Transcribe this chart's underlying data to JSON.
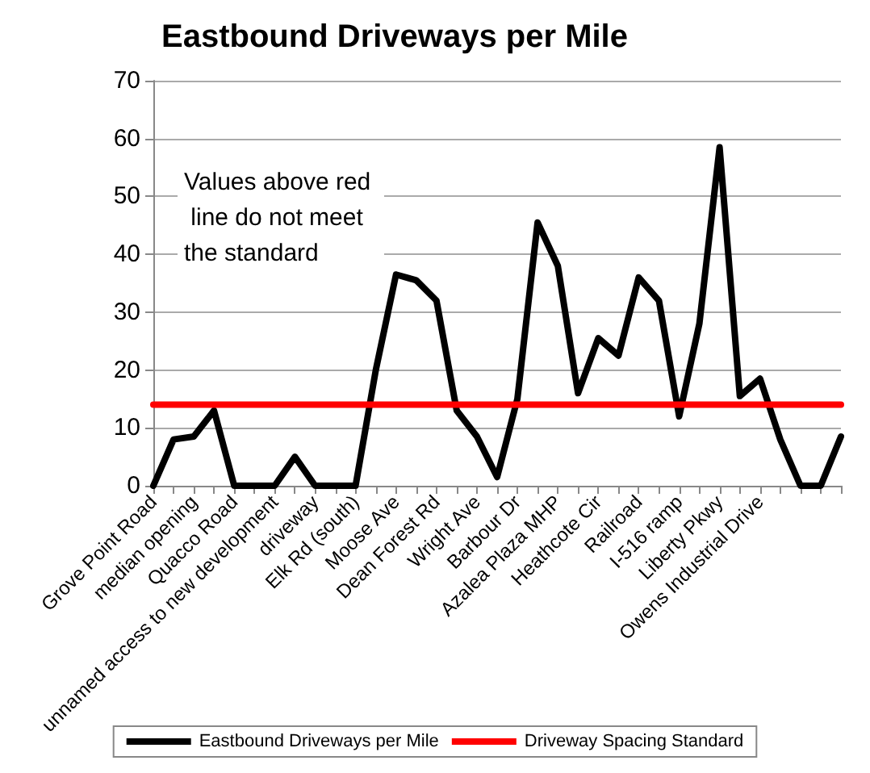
{
  "chart_data": {
    "type": "line",
    "title": "Eastbound Driveways per Mile",
    "categories": [
      "Grove Point Road",
      null,
      "median opening",
      null,
      "Quacco Road",
      null,
      "unnamed access to new development",
      null,
      "driveway",
      null,
      "Elk Rd (south)",
      null,
      "Moose Ave",
      null,
      "Dean Forest Rd",
      null,
      "Wright Ave",
      null,
      "Barbour Dr",
      null,
      "Azalea Plaza MHP",
      null,
      "Heathcote Cir",
      null,
      "Railroad",
      null,
      "I-516 ramp",
      null,
      "Liberty Pkwy",
      null,
      "Owens Industrial Drive",
      null,
      null,
      null,
      null
    ],
    "series": [
      {
        "name": "Eastbound Driveways per Mile",
        "color": "#000000",
        "values": [
          0,
          8,
          8.5,
          13,
          0,
          0,
          0,
          5,
          0,
          0,
          0,
          20,
          36.5,
          35.5,
          32,
          13,
          8.5,
          1.5,
          15,
          45.5,
          38,
          16,
          25.5,
          22.5,
          36,
          32,
          12,
          28,
          58.5,
          15.5,
          18.5,
          8,
          0,
          0,
          8.5
        ]
      },
      {
        "name": "Driveway Spacing Standard",
        "color": "#ff0000",
        "values": [
          14,
          14,
          14,
          14,
          14,
          14,
          14,
          14,
          14,
          14,
          14,
          14,
          14,
          14,
          14,
          14,
          14,
          14,
          14,
          14,
          14,
          14,
          14,
          14,
          14,
          14,
          14,
          14,
          14,
          14,
          14,
          14,
          14,
          14,
          14
        ]
      }
    ],
    "annotations": [
      "Values above red line do not meet the standard"
    ],
    "ylim": [
      0,
      70
    ],
    "yticks": [
      0,
      10,
      20,
      30,
      40,
      50,
      60,
      70
    ],
    "grid": "y",
    "legend": "bottom",
    "marker": "none",
    "line_style": "solid"
  }
}
